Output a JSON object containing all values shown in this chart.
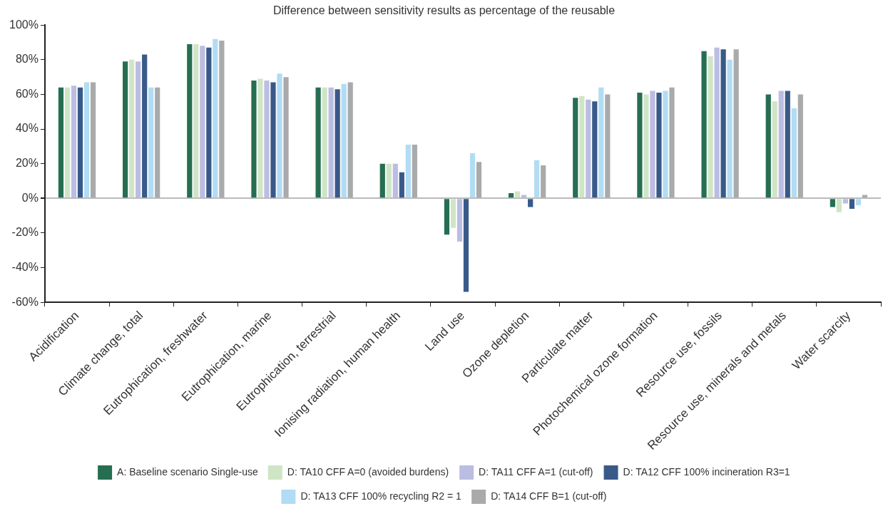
{
  "chart_data": {
    "type": "bar",
    "title": "Difference between sensitivity results as percentage of the reusable",
    "categories": [
      "Acidification",
      "Climate change, total",
      "Eutrophication, freshwater",
      "Eutrophication, marine",
      "Eutrophication, terrestrial",
      "Ionising radiation, human health",
      "Land use",
      "Ozone depletion",
      "Particulate matter",
      "Photochemical ozone formation",
      "Resource use, fossils",
      "Resource use, minerals and metals",
      "Water scarcity"
    ],
    "series": [
      {
        "name": "A: Baseline scenario Single-use",
        "color": "#266e52",
        "values": [
          64,
          79,
          89,
          68,
          64,
          20,
          -21,
          3,
          58,
          61,
          85,
          60,
          -5
        ]
      },
      {
        "name": "D: TA10 CFF A=0 (avoided burdens)",
        "color": "#cfe5c6",
        "values": [
          64,
          80,
          89,
          69,
          64,
          20,
          -17,
          4,
          59,
          60,
          82,
          56,
          -8
        ]
      },
      {
        "name": "D: TA11 CFF A=1 (cut-off)",
        "color": "#bbbde3",
        "values": [
          65,
          79,
          88,
          68,
          64,
          20,
          -25,
          2,
          57,
          62,
          87,
          62,
          -3
        ]
      },
      {
        "name": "D: TA12 CFF 100% incineration R3=1",
        "color": "#395a89",
        "values": [
          64,
          83,
          87,
          67,
          63,
          15,
          -54,
          -5,
          56,
          61,
          86,
          62,
          -6
        ]
      },
      {
        "name": "D: TA13 CFF 100% recycling R2 = 1",
        "color": "#b1dcf4",
        "values": [
          67,
          64,
          92,
          72,
          66,
          31,
          26,
          22,
          64,
          62,
          80,
          52,
          -4
        ]
      },
      {
        "name": "D: TA14 CFF B=1 (cut-off)",
        "color": "#a9aaab",
        "values": [
          67,
          64,
          91,
          70,
          67,
          31,
          21,
          19,
          60,
          64,
          86,
          60,
          2
        ]
      }
    ],
    "ylim": [
      -60,
      100
    ],
    "yticks": [
      {
        "value": -60,
        "label": "-60%"
      },
      {
        "value": -40,
        "label": "-40%"
      },
      {
        "value": -20,
        "label": "-20%"
      },
      {
        "value": 0,
        "label": "0%"
      },
      {
        "value": 20,
        "label": "20%"
      },
      {
        "value": 40,
        "label": "40%"
      },
      {
        "value": 60,
        "label": "60%"
      },
      {
        "value": 80,
        "label": "80%"
      },
      {
        "value": 100,
        "label": "100%"
      }
    ],
    "legend": "bottom"
  }
}
